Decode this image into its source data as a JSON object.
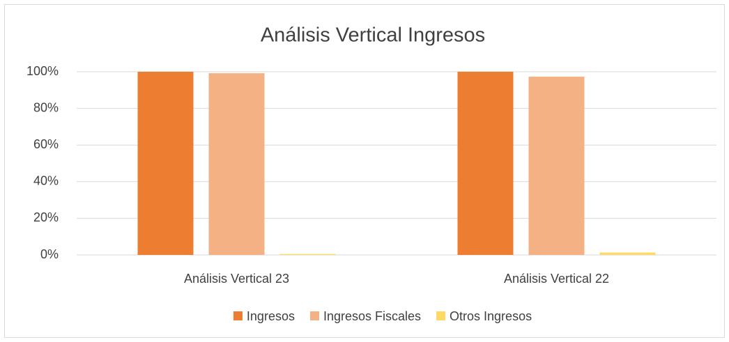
{
  "chart_data": {
    "type": "bar",
    "title": "Análisis Vertical Ingresos",
    "categories": [
      "Análisis Vertical 23",
      "Análisis Vertical 22"
    ],
    "series": [
      {
        "name": "Ingresos",
        "color": "#ed7d31",
        "values": [
          100,
          100
        ]
      },
      {
        "name": "Ingresos Fiscales",
        "color": "#f4b183",
        "values": [
          99.2,
          97.3
        ]
      },
      {
        "name": "Otros Ingresos",
        "color": "#ffd966",
        "values": [
          0.5,
          1.3
        ]
      }
    ],
    "ylim": [
      0,
      100
    ],
    "yticks": [
      {
        "value": 0,
        "label": "0%"
      },
      {
        "value": 20,
        "label": "20%"
      },
      {
        "value": 40,
        "label": "40%"
      },
      {
        "value": 60,
        "label": "60%"
      },
      {
        "value": 80,
        "label": "80%"
      },
      {
        "value": 100,
        "label": "100%"
      }
    ],
    "grid": true,
    "legend": "bottom"
  }
}
